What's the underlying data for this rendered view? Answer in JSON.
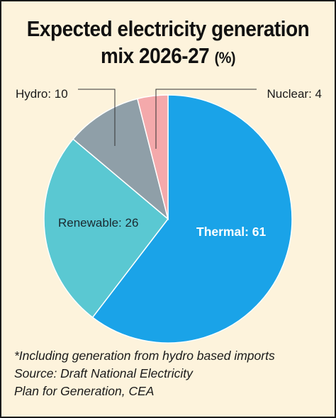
{
  "title": {
    "line1": "Expected electricity generation",
    "line2": "mix 2026-27",
    "unit": "(%)"
  },
  "chart_data": {
    "type": "pie",
    "slices": [
      {
        "label": "Thermal",
        "value": 61,
        "color": "#1aa3e8",
        "text": "Thermal: 61"
      },
      {
        "label": "Renewable",
        "value": 26,
        "color": "#5ac8d2",
        "text": "Renewable: 26"
      },
      {
        "label": "Hydro",
        "value": 10,
        "color": "#8f9fa8",
        "text": "Hydro: 10"
      },
      {
        "label": "Nuclear",
        "value": 4,
        "color": "#f4a9ab",
        "text": "Nuclear: 4"
      }
    ]
  },
  "footer": {
    "note": "*Including generation from hydro based imports",
    "source_line1": "Source: Draft National Electricity",
    "source_line2": "Plan for Generation, CEA"
  },
  "colors": {
    "background": "#fdf3dc",
    "border": "#1a1a1a",
    "slice_edge": "#ffffff"
  }
}
